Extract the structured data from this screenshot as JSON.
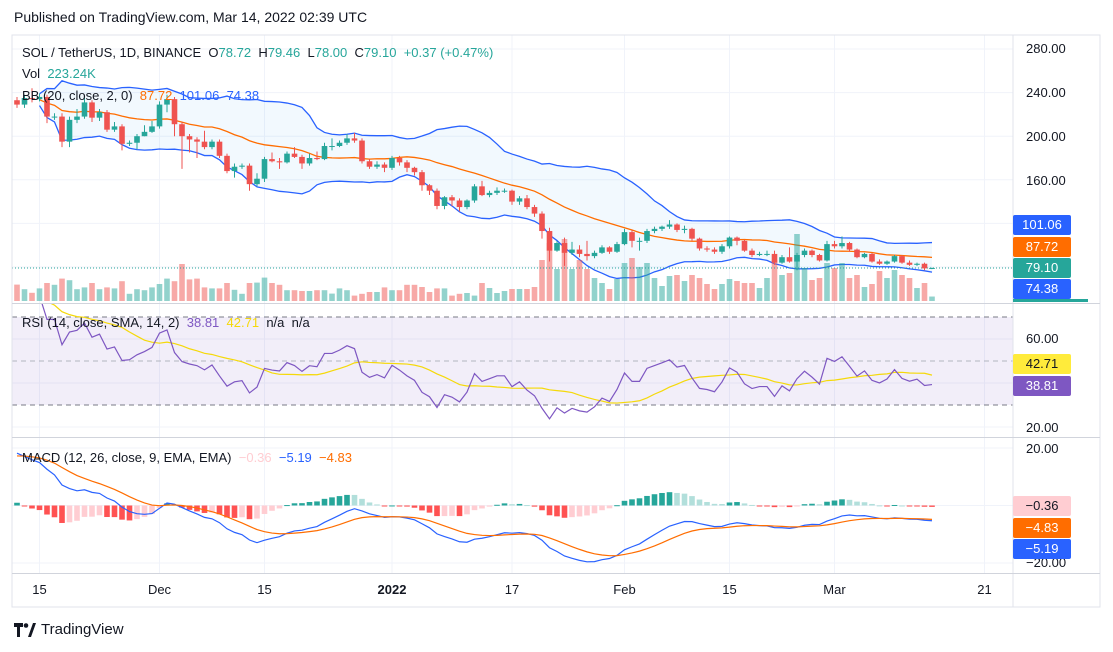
{
  "header": {
    "published": "Published on TradingView.com, Mar 14, 2022 02:39 UTC"
  },
  "legend": {
    "symbol": "SOL / TetherUS, 1D, BINANCE",
    "o_prefix": "O",
    "open": "78.72",
    "h_prefix": "H",
    "high": "79.46",
    "l_prefix": "L",
    "low": "78.00",
    "c_prefix": "C",
    "close": "79.10",
    "change": "+0.37 (+0.47%)"
  },
  "vol": {
    "label": "Vol",
    "value": "223.24K"
  },
  "bb": {
    "label": "BB (20, close, 2, 0)",
    "basis": "87.72",
    "upper": "101.06",
    "lower": "74.38"
  },
  "rsi": {
    "label": "RSI (14, close, SMA, 14, 2)",
    "rsi": "38.81",
    "ma": "42.71",
    "na1": "n/a",
    "na2": "n/a"
  },
  "macd": {
    "label": "MACD (12, 26, close, 9, EMA, EMA)",
    "hist": "−0.36",
    "macd": "−5.19",
    "signal": "−4.83"
  },
  "price_axis": {
    "ticks": [
      "280.00",
      "240.00",
      "200.00",
      "160.00"
    ],
    "tags": {
      "upper": "101.06",
      "basis": "87.72",
      "last": "79.10",
      "lower": "74.38"
    }
  },
  "rsi_axis": {
    "ticks": [
      "60.00",
      "20.00"
    ],
    "tags": {
      "ma": "42.71",
      "rsi": "38.81"
    }
  },
  "macd_axis": {
    "ticks": [
      "20.00",
      "−20.00"
    ],
    "tags": {
      "hist": "−0.36",
      "signal": "−4.83",
      "macd": "−5.19"
    }
  },
  "time_axis": {
    "labels": [
      {
        "text": "15",
        "date": "2021-11-15"
      },
      {
        "text": "Dec",
        "date": "2021-12-01"
      },
      {
        "text": "15",
        "date": "2021-12-15"
      },
      {
        "text": "2022",
        "date": "2022-01-01",
        "bold": true
      },
      {
        "text": "17",
        "date": "2022-01-17"
      },
      {
        "text": "Feb",
        "date": "2022-02-01"
      },
      {
        "text": "15",
        "date": "2022-02-15"
      },
      {
        "text": "Mar",
        "date": "2022-03-01"
      },
      {
        "text": "21",
        "date": "2022-03-21"
      }
    ]
  },
  "footer": {
    "brand": "TradingView"
  },
  "colors": {
    "up": "#26a69a",
    "down": "#ef5350",
    "bb_band": "#2962ff",
    "bb_basis": "#ff6d00",
    "rsi": "#7e57c2",
    "rsi_ma": "#f5d90a",
    "macd": "#2962ff",
    "signal": "#ff6d00",
    "hist_up_strong": "#26a69a",
    "hist_up_weak": "#b2dfdb",
    "hist_down_strong": "#ff5252",
    "hist_down_weak": "#ffcdd2"
  },
  "chart_data": {
    "type": "candlestick",
    "symbol": "SOL / TetherUS",
    "interval": "1D",
    "ylim_price": [
      60,
      290
    ],
    "rsi_levels": [
      70,
      50,
      30
    ],
    "dates": [
      "2021-11-12",
      "2021-11-13",
      "2021-11-14",
      "2021-11-15",
      "2021-11-16",
      "2021-11-17",
      "2021-11-18",
      "2021-11-19",
      "2021-11-20",
      "2021-11-21",
      "2021-11-22",
      "2021-11-23",
      "2021-11-24",
      "2021-11-25",
      "2021-11-26",
      "2021-11-27",
      "2021-11-28",
      "2021-11-29",
      "2021-11-30",
      "2021-12-01",
      "2021-12-02",
      "2021-12-03",
      "2021-12-04",
      "2021-12-05",
      "2021-12-06",
      "2021-12-07",
      "2021-12-08",
      "2021-12-09",
      "2021-12-10",
      "2021-12-11",
      "2021-12-12",
      "2021-12-13",
      "2021-12-14",
      "2021-12-15",
      "2021-12-16",
      "2021-12-17",
      "2021-12-18",
      "2021-12-19",
      "2021-12-20",
      "2021-12-21",
      "2021-12-22",
      "2021-12-23",
      "2021-12-24",
      "2021-12-25",
      "2021-12-26",
      "2021-12-27",
      "2021-12-28",
      "2021-12-29",
      "2021-12-30",
      "2021-12-31",
      "2022-01-01",
      "2022-01-02",
      "2022-01-03",
      "2022-01-04",
      "2022-01-05",
      "2022-01-06",
      "2022-01-07",
      "2022-01-08",
      "2022-01-09",
      "2022-01-10",
      "2022-01-11",
      "2022-01-12",
      "2022-01-13",
      "2022-01-14",
      "2022-01-15",
      "2022-01-16",
      "2022-01-17",
      "2022-01-18",
      "2022-01-19",
      "2022-01-20",
      "2022-01-21",
      "2022-01-22",
      "2022-01-23",
      "2022-01-24",
      "2022-01-25",
      "2022-01-26",
      "2022-01-27",
      "2022-01-28",
      "2022-01-29",
      "2022-01-30",
      "2022-01-31",
      "2022-02-01",
      "2022-02-02",
      "2022-02-03",
      "2022-02-04",
      "2022-02-05",
      "2022-02-06",
      "2022-02-07",
      "2022-02-08",
      "2022-02-09",
      "2022-02-10",
      "2022-02-11",
      "2022-02-12",
      "2022-02-13",
      "2022-02-14",
      "2022-02-15",
      "2022-02-16",
      "2022-02-17",
      "2022-02-18",
      "2022-02-19",
      "2022-02-20",
      "2022-02-21",
      "2022-02-22",
      "2022-02-23",
      "2022-02-24",
      "2022-02-25",
      "2022-02-26",
      "2022-02-27",
      "2022-02-28",
      "2022-03-01",
      "2022-03-02",
      "2022-03-03",
      "2022-03-04",
      "2022-03-05",
      "2022-03-06",
      "2022-03-07",
      "2022-03-08",
      "2022-03-09",
      "2022-03-10",
      "2022-03-11",
      "2022-03-12",
      "2022-03-13",
      "2022-03-14"
    ],
    "open": [
      233,
      229,
      235,
      234,
      236,
      218,
      218,
      195,
      215,
      218,
      231,
      217,
      222,
      206,
      209,
      193,
      194,
      200,
      204,
      209,
      229,
      234,
      211,
      200,
      197,
      195,
      190,
      195,
      182,
      168,
      172,
      173,
      156,
      161,
      179,
      177,
      176,
      184,
      181,
      175,
      180,
      179,
      191,
      191,
      194,
      198,
      196,
      177,
      172,
      174,
      171,
      180,
      176,
      171,
      167,
      155,
      150,
      136,
      144,
      141,
      135,
      141,
      154,
      146,
      148,
      150,
      150,
      140,
      143,
      135,
      129,
      113,
      95,
      102,
      93,
      96,
      92,
      90,
      93,
      98,
      94,
      101,
      112,
      104,
      104,
      113,
      115,
      117,
      119,
      114,
      115,
      106,
      97,
      96,
      94,
      99,
      107,
      104,
      95,
      91,
      92,
      92,
      84,
      89,
      85,
      91,
      95,
      91,
      86,
      101,
      99,
      102,
      96,
      89,
      92,
      85,
      83,
      85,
      90,
      84,
      82,
      83,
      78.72
    ],
    "high": [
      236,
      238,
      244,
      239,
      238,
      221,
      221,
      218,
      225,
      235,
      233,
      225,
      224,
      213,
      211,
      196,
      202,
      210,
      214,
      232,
      238,
      236,
      213,
      202,
      199,
      205,
      197,
      197,
      184,
      175,
      175,
      175,
      166,
      181,
      185,
      180,
      186,
      190,
      183,
      184,
      186,
      194,
      198,
      196,
      202,
      203,
      198,
      179,
      177,
      176,
      182,
      182,
      178,
      172,
      169,
      156,
      152,
      145,
      146,
      143,
      142,
      156,
      159,
      150,
      153,
      152,
      151,
      145,
      146,
      137,
      131,
      116,
      104,
      107,
      103,
      100,
      104,
      95,
      100,
      99,
      103,
      115,
      114,
      107,
      115,
      117,
      118,
      123,
      120,
      118,
      116,
      107,
      99,
      98,
      101,
      108,
      108,
      105,
      97,
      94,
      95,
      95,
      91,
      98,
      93,
      97,
      96,
      92,
      104,
      104,
      108,
      103,
      97,
      93,
      93,
      87,
      86,
      91,
      91,
      86,
      84,
      84,
      79.46
    ],
    "low": [
      226,
      226,
      231,
      232,
      212,
      215,
      190,
      190,
      212,
      216,
      213,
      214,
      204,
      204,
      187,
      191,
      188,
      200,
      203,
      207,
      222,
      200,
      170,
      185,
      180,
      188,
      188,
      180,
      166,
      162,
      170,
      150,
      154,
      158,
      176,
      170,
      175,
      180,
      170,
      173,
      178,
      178,
      187,
      190,
      192,
      194,
      175,
      170,
      170,
      167,
      169,
      173,
      167,
      164,
      150,
      146,
      133,
      133,
      136,
      131,
      133,
      139,
      145,
      144,
      146,
      148,
      137,
      137,
      133,
      126,
      106,
      85,
      94,
      81,
      91,
      89,
      86,
      88,
      92,
      92,
      93,
      100,
      98,
      95,
      102,
      111,
      113,
      115,
      112,
      111,
      104,
      95,
      94,
      92,
      92,
      97,
      100,
      94,
      89,
      90,
      90,
      82,
      83,
      84,
      77,
      89,
      89,
      85,
      85,
      97,
      97,
      94,
      88,
      88,
      84,
      82,
      82,
      84,
      83,
      81,
      81,
      77,
      78.0
    ],
    "close": [
      229,
      235,
      234,
      236,
      218,
      218,
      195,
      215,
      218,
      231,
      217,
      222,
      206,
      209,
      193,
      194,
      200,
      204,
      209,
      229,
      234,
      211,
      200,
      197,
      195,
      190,
      195,
      182,
      168,
      172,
      173,
      156,
      161,
      179,
      177,
      176,
      184,
      181,
      175,
      180,
      179,
      191,
      191,
      194,
      198,
      196,
      177,
      172,
      174,
      171,
      180,
      176,
      171,
      167,
      155,
      150,
      136,
      144,
      141,
      135,
      141,
      154,
      146,
      148,
      150,
      150,
      140,
      143,
      135,
      129,
      113,
      95,
      102,
      93,
      96,
      92,
      90,
      93,
      98,
      94,
      101,
      112,
      104,
      104,
      113,
      115,
      117,
      119,
      114,
      115,
      106,
      97,
      96,
      94,
      99,
      107,
      104,
      95,
      91,
      92,
      92,
      84,
      89,
      85,
      91,
      95,
      91,
      86,
      101,
      99,
      102,
      96,
      89,
      92,
      85,
      83,
      85,
      90,
      84,
      82,
      83,
      78.72,
      79.1
    ],
    "volume_k": [
      820,
      590,
      410,
      630,
      900,
      810,
      1120,
      1040,
      590,
      680,
      900,
      590,
      680,
      630,
      990,
      360,
      590,
      540,
      680,
      850,
      1120,
      990,
      1850,
      1080,
      1120,
      680,
      630,
      630,
      900,
      560,
      360,
      900,
      920,
      1170,
      900,
      810,
      540,
      540,
      500,
      500,
      540,
      540,
      370,
      630,
      540,
      270,
      360,
      450,
      450,
      680,
      540,
      540,
      810,
      810,
      700,
      450,
      630,
      630,
      270,
      360,
      400,
      270,
      900,
      650,
      400,
      500,
      600,
      600,
      600,
      700,
      2050,
      2900,
      1600,
      3100,
      1600,
      2050,
      1600,
      1150,
      900,
      600,
      1100,
      1900,
      2150,
      1700,
      1900,
      1150,
      750,
      1250,
      1300,
      1000,
      1300,
      1150,
      850,
      600,
      850,
      1100,
      1000,
      900,
      900,
      650,
      1150,
      2050,
      1300,
      1400,
      3350,
      1650,
      1050,
      1150,
      1900,
      1650,
      1900,
      1150,
      1300,
      700,
      850,
      1500,
      1150,
      1550,
      1300,
      1150,
      650,
      900,
      223.24
    ]
  }
}
